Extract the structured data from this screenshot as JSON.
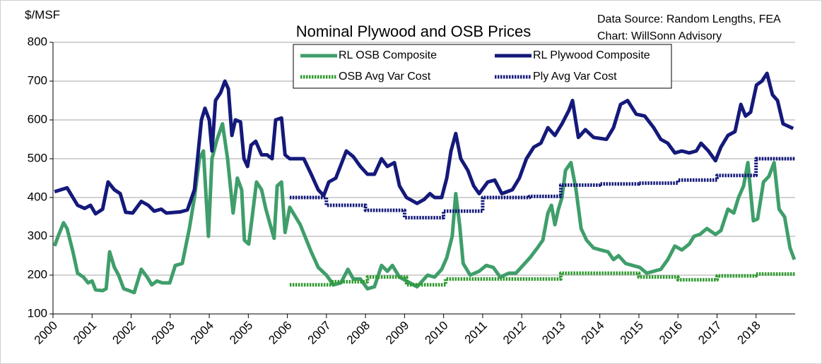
{
  "chart_data": {
    "type": "line",
    "title": "Nominal Plywood and OSB Prices",
    "y_label": "$/MSF",
    "annotations": [
      "Data Source: Random Lengths, FEA",
      "Chart:  WillSonn Advisory"
    ],
    "xlim": [
      2000,
      2019
    ],
    "xticks": [
      2000,
      2001,
      2002,
      2003,
      2004,
      2005,
      2006,
      2007,
      2008,
      2009,
      2010,
      2011,
      2012,
      2013,
      2014,
      2015,
      2016,
      2017,
      2018
    ],
    "ylim": [
      100,
      800
    ],
    "yticks": [
      100,
      200,
      300,
      400,
      500,
      600,
      700,
      800
    ],
    "grid": true,
    "legend": "top",
    "series": [
      {
        "name": "RL OSB Composite",
        "color": "#3f9e6a",
        "style": "solid",
        "x": [
          2000.04,
          2000.13,
          2000.27,
          2000.36,
          2000.51,
          2000.63,
          2000.78,
          2000.9,
          2001.0,
          2001.09,
          2001.27,
          2001.36,
          2001.45,
          2001.57,
          2001.68,
          2001.81,
          2001.95,
          2002.08,
          2002.26,
          2002.41,
          2002.53,
          2002.66,
          2002.8,
          2002.99,
          2003.13,
          2003.31,
          2003.49,
          2003.62,
          2003.75,
          2003.85,
          2003.98,
          2004.07,
          2004.2,
          2004.34,
          2004.47,
          2004.61,
          2004.72,
          2004.83,
          2004.9,
          2005.01,
          2005.1,
          2005.21,
          2005.34,
          2005.45,
          2005.56,
          2005.66,
          2005.74,
          2005.85,
          2005.94,
          2006.06,
          2006.21,
          2006.33,
          2006.61,
          2006.79,
          2007.0,
          2007.18,
          2007.37,
          2007.55,
          2007.69,
          2007.87,
          2008.05,
          2008.23,
          2008.41,
          2008.56,
          2008.69,
          2008.87,
          2009.05,
          2009.32,
          2009.59,
          2009.77,
          2009.95,
          2010.08,
          2010.22,
          2010.31,
          2010.41,
          2010.5,
          2010.68,
          2010.91,
          2011.09,
          2011.27,
          2011.45,
          2011.67,
          2011.85,
          2012.03,
          2012.21,
          2012.4,
          2012.54,
          2012.67,
          2012.76,
          2012.85,
          2012.94,
          2013.03,
          2013.12,
          2013.26,
          2013.39,
          2013.52,
          2013.66,
          2013.84,
          2014.02,
          2014.21,
          2014.35,
          2014.48,
          2014.66,
          2014.84,
          2015.02,
          2015.2,
          2015.38,
          2015.56,
          2015.74,
          2015.92,
          2016.1,
          2016.29,
          2016.41,
          2016.56,
          2016.74,
          2016.96,
          2017.1,
          2017.28,
          2017.43,
          2017.55,
          2017.68,
          2017.79,
          2017.93,
          2018.04,
          2018.19,
          2018.33,
          2018.46,
          2018.59,
          2018.73,
          2018.87,
          2018.98
        ],
        "values": [
          275,
          300,
          335,
          320,
          260,
          205,
          195,
          180,
          185,
          162,
          160,
          165,
          260,
          220,
          200,
          165,
          160,
          155,
          215,
          195,
          175,
          185,
          180,
          180,
          225,
          230,
          320,
          400,
          500,
          520,
          300,
          500,
          550,
          590,
          500,
          360,
          450,
          420,
          290,
          280,
          350,
          440,
          420,
          370,
          330,
          295,
          430,
          440,
          310,
          375,
          350,
          330,
          260,
          220,
          200,
          175,
          180,
          215,
          190,
          190,
          165,
          170,
          225,
          210,
          225,
          195,
          185,
          170,
          200,
          195,
          215,
          245,
          300,
          410,
          330,
          230,
          200,
          210,
          225,
          220,
          195,
          205,
          205,
          225,
          245,
          270,
          290,
          360,
          380,
          330,
          370,
          400,
          470,
          490,
          420,
          320,
          290,
          270,
          265,
          260,
          240,
          250,
          230,
          225,
          220,
          205,
          210,
          215,
          240,
          275,
          265,
          280,
          300,
          305,
          320,
          305,
          315,
          370,
          360,
          400,
          430,
          490,
          340,
          345,
          440,
          455,
          490,
          370,
          350,
          270,
          240
        ]
      },
      {
        "name": "RL Plywood Composite",
        "color": "#14197a",
        "style": "solid",
        "x": [
          2000.04,
          2000.36,
          2000.63,
          2000.81,
          2000.96,
          2001.09,
          2001.27,
          2001.41,
          2001.57,
          2001.72,
          2001.86,
          2002.04,
          2002.26,
          2002.44,
          2002.59,
          2002.77,
          2002.9,
          2003.26,
          2003.44,
          2003.62,
          2003.8,
          2003.89,
          2004.0,
          2004.07,
          2004.16,
          2004.29,
          2004.4,
          2004.49,
          2004.58,
          2004.67,
          2004.8,
          2004.89,
          2004.98,
          2005.07,
          2005.19,
          2005.34,
          2005.48,
          2005.61,
          2005.7,
          2005.85,
          2005.94,
          2006.06,
          2006.42,
          2006.61,
          2006.79,
          2006.93,
          2007.06,
          2007.24,
          2007.51,
          2007.69,
          2007.87,
          2008.05,
          2008.23,
          2008.41,
          2008.56,
          2008.74,
          2008.87,
          2009.05,
          2009.32,
          2009.5,
          2009.65,
          2009.77,
          2009.95,
          2010.08,
          2010.19,
          2010.31,
          2010.44,
          2010.62,
          2010.77,
          2010.91,
          2011.13,
          2011.31,
          2011.49,
          2011.76,
          2011.94,
          2012.12,
          2012.31,
          2012.49,
          2012.67,
          2012.85,
          2013.03,
          2013.21,
          2013.3,
          2013.45,
          2013.63,
          2013.84,
          2014.17,
          2014.35,
          2014.53,
          2014.71,
          2014.93,
          2015.15,
          2015.38,
          2015.56,
          2015.74,
          2015.92,
          2016.1,
          2016.29,
          2016.47,
          2016.59,
          2016.78,
          2016.96,
          2017.1,
          2017.28,
          2017.46,
          2017.61,
          2017.73,
          2017.86,
          2018.01,
          2018.15,
          2018.28,
          2018.42,
          2018.55,
          2018.69,
          2018.95
        ],
        "values": [
          415,
          425,
          380,
          372,
          380,
          358,
          370,
          440,
          420,
          410,
          362,
          360,
          390,
          380,
          365,
          370,
          360,
          363,
          368,
          420,
          600,
          630,
          600,
          520,
          650,
          670,
          700,
          680,
          560,
          600,
          595,
          500,
          480,
          535,
          545,
          510,
          510,
          500,
          600,
          605,
          510,
          500,
          500,
          460,
          420,
          405,
          440,
          450,
          520,
          505,
          480,
          460,
          460,
          500,
          480,
          490,
          430,
          400,
          385,
          395,
          410,
          400,
          400,
          450,
          520,
          565,
          500,
          470,
          430,
          410,
          440,
          445,
          410,
          420,
          450,
          500,
          530,
          540,
          580,
          560,
          590,
          625,
          650,
          555,
          575,
          555,
          550,
          580,
          640,
          650,
          615,
          610,
          580,
          550,
          540,
          515,
          520,
          515,
          520,
          540,
          520,
          495,
          530,
          560,
          570,
          640,
          610,
          620,
          690,
          700,
          720,
          665,
          650,
          590,
          578
        ]
      },
      {
        "name": "OSB Avg Var Cost",
        "color": "#2f9a2f",
        "style": "dotted",
        "x": [
          2006.06,
          2007.15,
          2007.15,
          2008.05,
          2008.05,
          2009.05,
          2009.05,
          2010.05,
          2010.05,
          2013.0,
          2013.0,
          2015.0,
          2015.0,
          2016.0,
          2016.0,
          2017.0,
          2017.0,
          2018.0,
          2018.0,
          2019.0
        ],
        "values": [
          175,
          175,
          183,
          183,
          195,
          195,
          175,
          175,
          190,
          190,
          205,
          205,
          195,
          195,
          188,
          188,
          198,
          198,
          203,
          203
        ]
      },
      {
        "name": "Ply Avg Var Cost",
        "color": "#14197a",
        "style": "dotted",
        "x": [
          2006.06,
          2007.0,
          2007.0,
          2008.0,
          2008.0,
          2009.0,
          2009.0,
          2010.0,
          2010.0,
          2011.0,
          2011.0,
          2012.2,
          2012.2,
          2013.0,
          2013.0,
          2014.0,
          2014.0,
          2015.0,
          2015.0,
          2016.0,
          2016.0,
          2017.0,
          2017.0,
          2018.0,
          2018.0,
          2019.0
        ],
        "values": [
          400,
          400,
          380,
          380,
          367,
          367,
          348,
          348,
          365,
          365,
          400,
          400,
          403,
          403,
          432,
          432,
          435,
          435,
          437,
          437,
          445,
          445,
          457,
          457,
          500,
          500
        ]
      }
    ]
  }
}
